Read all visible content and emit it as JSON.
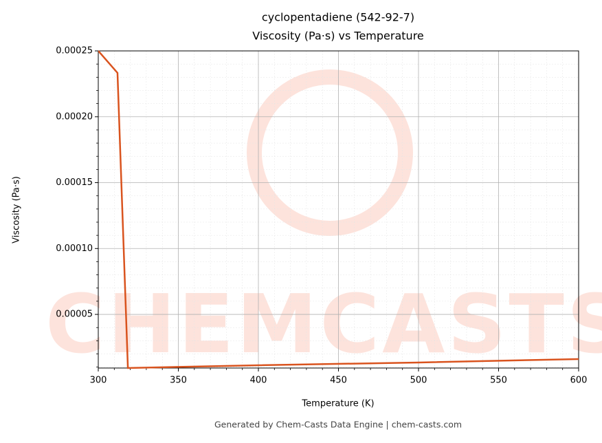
{
  "chart_data": {
    "type": "line",
    "title": "cyclopentadiene (542-92-7)",
    "subtitle": "Viscosity (Pa·s) vs Temperature",
    "xlabel": "Temperature (K)",
    "ylabel": "Viscosity (Pa·s)",
    "footer": "Generated by Chem-Casts Data Engine | chem-casts.com",
    "watermark": "CHEMCASTS",
    "x": [
      300,
      312,
      318.5,
      400,
      500,
      600
    ],
    "series": [
      {
        "name": "Viscosity",
        "color": "#d9531e",
        "values": [
          0.00025,
          0.0002333,
          9.3e-06,
          1.14e-05,
          1.35e-05,
          1.61e-05
        ]
      }
    ],
    "xlim": [
      300,
      600
    ],
    "xticks": [
      300,
      350,
      400,
      450,
      500,
      550,
      600
    ],
    "ylim": [
      9.3e-06,
      0.00025
    ],
    "yticks": [
      {
        "value": 5e-05,
        "label": "0.00005"
      },
      {
        "value": 0.0001,
        "label": "0.00010"
      },
      0.00015,
      {
        "value": 0.0002,
        "label": "0.00020"
      },
      0.00025
    ],
    "grid": true
  }
}
